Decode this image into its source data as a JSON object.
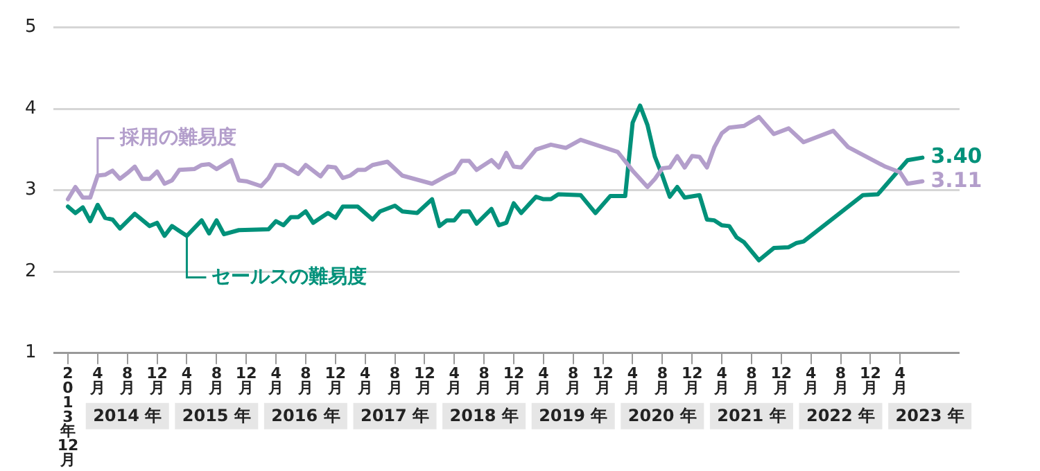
{
  "chart_data": {
    "type": "line",
    "ylim": [
      1,
      5
    ],
    "yticks": [
      1,
      2,
      3,
      4,
      5
    ],
    "grid": "y",
    "legend": false,
    "marker": "none",
    "line_style": "solid",
    "xlim": [
      "2013-10",
      "2023-12"
    ],
    "xticks": [
      {
        "value": "2013-12",
        "label": "2013年12月"
      },
      {
        "value": "2014-04",
        "label": "4月"
      },
      {
        "value": "2014-08",
        "label": "8月"
      },
      {
        "value": "2014-12",
        "label": "12月"
      },
      {
        "value": "2015-04",
        "label": "4月"
      },
      {
        "value": "2015-08",
        "label": "8月"
      },
      {
        "value": "2015-12",
        "label": "12月"
      },
      {
        "value": "2016-04",
        "label": "4月"
      },
      {
        "value": "2016-08",
        "label": "8月"
      },
      {
        "value": "2016-12",
        "label": "12月"
      },
      {
        "value": "2017-04",
        "label": "4月"
      },
      {
        "value": "2017-08",
        "label": "8月"
      },
      {
        "value": "2017-12",
        "label": "12月"
      },
      {
        "value": "2018-04",
        "label": "4月"
      },
      {
        "value": "2018-08",
        "label": "8月"
      },
      {
        "value": "2018-12",
        "label": "12月"
      },
      {
        "value": "2019-04",
        "label": "4月"
      },
      {
        "value": "2019-08",
        "label": "8月"
      },
      {
        "value": "2019-12",
        "label": "12月"
      },
      {
        "value": "2020-04",
        "label": "4月"
      },
      {
        "value": "2020-08",
        "label": "8月"
      },
      {
        "value": "2020-12",
        "label": "12月"
      },
      {
        "value": "2021-04",
        "label": "4月"
      },
      {
        "value": "2021-08",
        "label": "8月"
      },
      {
        "value": "2021-12",
        "label": "12月"
      },
      {
        "value": "2022-04",
        "label": "4月"
      },
      {
        "value": "2022-08",
        "label": "8月"
      },
      {
        "value": "2022-12",
        "label": "12月"
      },
      {
        "value": "2023-04",
        "label": "4月"
      }
    ],
    "x2lim": [
      "2013-10",
      "2023-12"
    ],
    "x2ticks": [
      {
        "value": "2014-08",
        "label": "2014 年"
      },
      {
        "value": "2015-08",
        "label": "2015 年"
      },
      {
        "value": "2016-08",
        "label": "2016 年"
      },
      {
        "value": "2017-08",
        "label": "2017 年"
      },
      {
        "value": "2018-08",
        "label": "2018 年"
      },
      {
        "value": "2019-08",
        "label": "2019 年"
      },
      {
        "value": "2020-08",
        "label": "2020 年"
      },
      {
        "value": "2021-08",
        "label": "2021 年"
      },
      {
        "value": "2022-08",
        "label": "2022 年"
      },
      {
        "value": "2023-08",
        "label": "2023 年"
      }
    ],
    "series": [
      {
        "name": "採用の難易度",
        "color": "#b39ecb",
        "x": [
          "2013-12",
          "2014-01",
          "2014-02",
          "2014-03",
          "2014-04",
          "2014-05",
          "2014-06",
          "2014-07",
          "2014-08",
          "2014-09",
          "2014-10",
          "2014-11",
          "2014-12",
          "2015-01",
          "2015-02",
          "2015-03",
          "2015-05",
          "2015-06",
          "2015-07",
          "2015-08",
          "2015-10",
          "2015-11",
          "2015-12",
          "2016-02",
          "2016-03",
          "2016-04",
          "2016-05",
          "2016-07",
          "2016-08",
          "2016-10",
          "2016-11",
          "2016-12",
          "2017-01",
          "2017-02",
          "2017-03",
          "2017-04",
          "2017-05",
          "2017-07",
          "2017-09",
          "2018-01",
          "2018-03",
          "2018-04",
          "2018-05",
          "2018-06",
          "2018-07",
          "2018-09",
          "2018-10",
          "2018-11",
          "2018-12",
          "2019-01",
          "2019-03",
          "2019-05",
          "2019-07",
          "2019-09",
          "2020-02",
          "2020-04",
          "2020-06",
          "2020-07",
          "2020-08",
          "2020-09",
          "2020-10",
          "2020-11",
          "2020-12",
          "2021-01",
          "2021-02",
          "2021-03",
          "2021-04",
          "2021-05",
          "2021-07",
          "2021-09",
          "2021-11",
          "2022-01",
          "2022-03",
          "2022-07",
          "2022-09",
          "2023-02",
          "2023-04",
          "2023-05",
          "2023-07"
        ],
        "values": [
          2.89,
          3.04,
          2.91,
          2.91,
          3.18,
          3.19,
          3.24,
          3.14,
          3.21,
          3.29,
          3.14,
          3.14,
          3.23,
          3.08,
          3.12,
          3.25,
          3.26,
          3.31,
          3.32,
          3.26,
          3.37,
          3.12,
          3.11,
          3.05,
          3.15,
          3.31,
          3.31,
          3.2,
          3.31,
          3.17,
          3.29,
          3.28,
          3.15,
          3.18,
          3.25,
          3.25,
          3.31,
          3.35,
          3.18,
          3.08,
          3.18,
          3.22,
          3.36,
          3.36,
          3.25,
          3.37,
          3.28,
          3.46,
          3.29,
          3.28,
          3.5,
          3.56,
          3.52,
          3.62,
          3.47,
          3.24,
          3.04,
          3.14,
          3.27,
          3.28,
          3.42,
          3.28,
          3.42,
          3.41,
          3.28,
          3.53,
          3.7,
          3.77,
          3.79,
          3.9,
          3.69,
          3.76,
          3.59,
          3.73,
          3.53,
          3.29,
          3.22,
          3.08,
          3.11
        ],
        "value_labels": [
          null,
          null,
          null,
          null,
          null,
          null,
          null,
          null,
          null,
          null,
          null,
          null,
          null,
          null,
          null,
          null,
          null,
          null,
          null,
          null,
          null,
          null,
          null,
          null,
          null,
          null,
          null,
          null,
          null,
          null,
          null,
          null,
          null,
          null,
          null,
          null,
          null,
          null,
          null,
          null,
          null,
          null,
          null,
          null,
          null,
          null,
          null,
          null,
          null,
          null,
          null,
          null,
          null,
          null,
          null,
          null,
          null,
          null,
          null,
          null,
          null,
          null,
          null,
          null,
          null,
          null,
          null,
          null,
          null,
          null,
          null,
          null,
          null,
          null,
          null,
          null,
          null,
          null,
          "3.11"
        ]
      },
      {
        "name": "セールスの難易度",
        "color": "#00917a",
        "x": [
          "2013-12",
          "2014-01",
          "2014-02",
          "2014-03",
          "2014-04",
          "2014-05",
          "2014-06",
          "2014-07",
          "2014-09",
          "2014-11",
          "2014-12",
          "2015-01",
          "2015-02",
          "2015-04",
          "2015-06",
          "2015-07",
          "2015-08",
          "2015-09",
          "2015-11",
          "2016-03",
          "2016-04",
          "2016-05",
          "2016-06",
          "2016-07",
          "2016-08",
          "2016-09",
          "2016-10",
          "2016-11",
          "2016-12",
          "2017-01",
          "2017-03",
          "2017-05",
          "2017-06",
          "2017-08",
          "2017-09",
          "2017-11",
          "2018-01",
          "2018-02",
          "2018-03",
          "2018-04",
          "2018-05",
          "2018-06",
          "2018-07",
          "2018-09",
          "2018-10",
          "2018-11",
          "2018-12",
          "2019-01",
          "2019-03",
          "2019-04",
          "2019-05",
          "2019-06",
          "2019-09",
          "2019-11",
          "2020-01",
          "2020-03",
          "2020-04",
          "2020-05",
          "2020-06",
          "2020-07",
          "2020-08",
          "2020-09",
          "2020-10",
          "2020-11",
          "2021-01",
          "2021-02",
          "2021-03",
          "2021-04",
          "2021-05",
          "2021-06",
          "2021-07",
          "2021-09",
          "2021-11",
          "2022-01",
          "2022-02",
          "2022-03",
          "2022-11",
          "2023-01",
          "2023-05",
          "2023-07"
        ],
        "values": [
          2.8,
          2.72,
          2.79,
          2.62,
          2.82,
          2.66,
          2.64,
          2.53,
          2.71,
          2.56,
          2.6,
          2.44,
          2.56,
          2.44,
          2.63,
          2.47,
          2.63,
          2.46,
          2.51,
          2.52,
          2.62,
          2.57,
          2.67,
          2.67,
          2.74,
          2.6,
          2.66,
          2.72,
          2.66,
          2.8,
          2.8,
          2.64,
          2.74,
          2.81,
          2.74,
          2.72,
          2.89,
          2.56,
          2.63,
          2.63,
          2.74,
          2.74,
          2.59,
          2.77,
          2.57,
          2.6,
          2.84,
          2.72,
          2.92,
          2.89,
          2.89,
          2.95,
          2.94,
          2.72,
          2.93,
          2.93,
          3.83,
          4.04,
          3.8,
          3.41,
          3.18,
          2.92,
          3.04,
          2.91,
          2.94,
          2.64,
          2.63,
          2.57,
          2.56,
          2.42,
          2.36,
          2.14,
          2.29,
          2.3,
          2.35,
          2.37,
          2.94,
          2.95,
          3.37,
          3.4
        ],
        "value_labels": [
          null,
          null,
          null,
          null,
          null,
          null,
          null,
          null,
          null,
          null,
          null,
          null,
          null,
          null,
          null,
          null,
          null,
          null,
          null,
          null,
          null,
          null,
          null,
          null,
          null,
          null,
          null,
          null,
          null,
          null,
          null,
          null,
          null,
          null,
          null,
          null,
          null,
          null,
          null,
          null,
          null,
          null,
          null,
          null,
          null,
          null,
          null,
          null,
          null,
          null,
          null,
          null,
          null,
          null,
          null,
          null,
          null,
          null,
          null,
          null,
          null,
          null,
          null,
          null,
          null,
          null,
          null,
          null,
          null,
          null,
          null,
          null,
          null,
          null,
          null,
          null,
          null,
          null,
          null,
          "3.40"
        ]
      }
    ]
  }
}
